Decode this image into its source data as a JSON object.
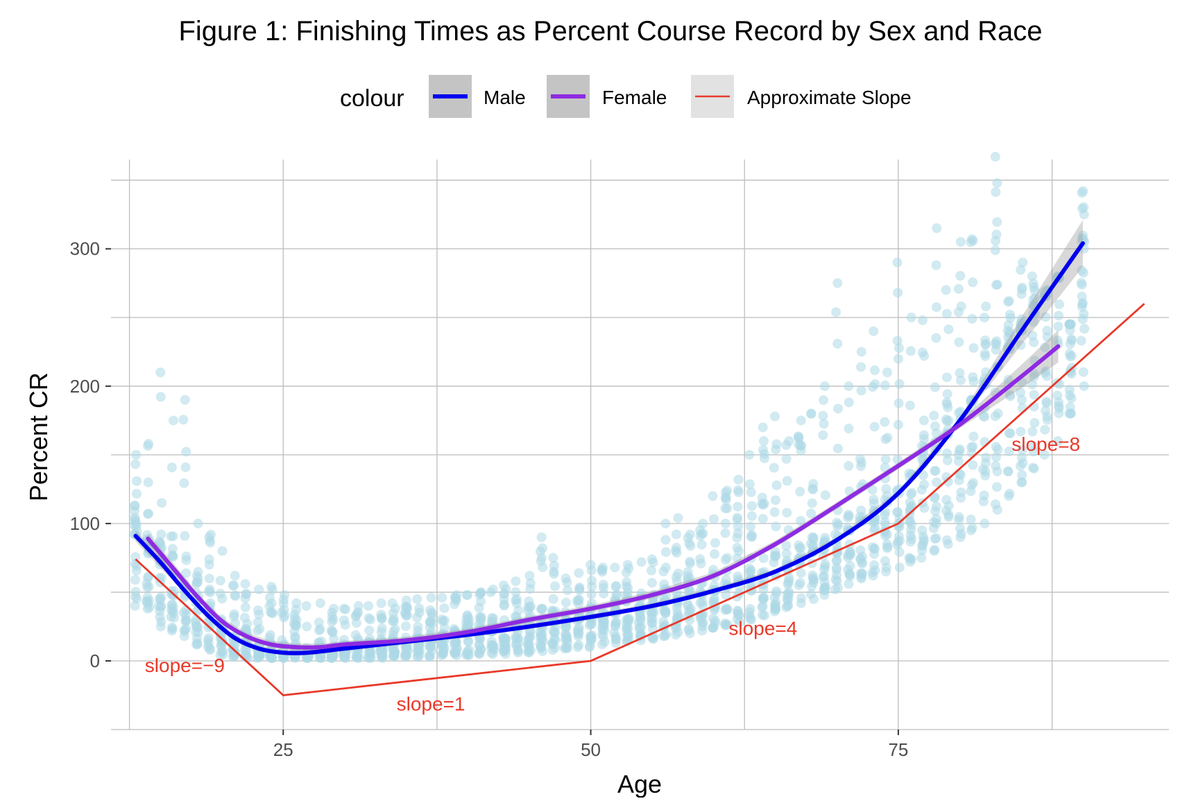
{
  "chart_data": {
    "type": "scatter",
    "title": "Figure 1: Finishing Times as Percent Course Record by Sex and Race",
    "xlabel": "Age",
    "ylabel": "Percent CR",
    "xlim": [
      11,
      97
    ],
    "ylim": [
      -50,
      365
    ],
    "x_ticks": [
      25,
      50,
      75
    ],
    "y_ticks": [
      0,
      100,
      200,
      300
    ],
    "legend": {
      "title": "colour",
      "position": "top",
      "items": [
        {
          "label": "Male",
          "color": "#0000ee"
        },
        {
          "label": "Female",
          "color": "#8e2be2"
        },
        {
          "label": "Approximate Slope",
          "color": "#e8392a"
        }
      ]
    },
    "colors": {
      "points": "#add8e6",
      "male": "#0000ee",
      "female": "#8e2be2",
      "slope": "#e8392a",
      "grid": "#bdbdbd",
      "ribbon": "#9e9e9e"
    },
    "series": [
      {
        "name": "Male",
        "x": [
          13,
          15,
          17,
          19,
          21,
          23,
          25,
          27,
          30,
          35,
          40,
          45,
          50,
          55,
          60,
          65,
          70,
          75,
          80,
          85,
          90
        ],
        "y": [
          91,
          72,
          51,
          32,
          17,
          9,
          6,
          6,
          9,
          14,
          19,
          25,
          32,
          40,
          51,
          65,
          88,
          122,
          175,
          240,
          304
        ]
      },
      {
        "name": "Female",
        "x": [
          14,
          16,
          18,
          20,
          22,
          24,
          26,
          28,
          30,
          35,
          40,
          45,
          50,
          55,
          60,
          65,
          70,
          75,
          80,
          85,
          88
        ],
        "y": [
          89,
          68,
          47,
          29,
          18,
          12,
          10,
          10,
          12,
          15,
          21,
          30,
          38,
          48,
          62,
          85,
          113,
          142,
          172,
          207,
          229
        ]
      },
      {
        "name": "Approximate Slope",
        "x": [
          13,
          25,
          50,
          75,
          95
        ],
        "y": [
          74,
          -25,
          0,
          100,
          260
        ]
      }
    ],
    "annotations": [
      {
        "text": "slope=−9",
        "x": 17,
        "y": -3
      },
      {
        "text": "slope=1",
        "x": 37,
        "y": -31
      },
      {
        "text": "slope=4",
        "x": 64,
        "y": 24
      },
      {
        "text": "slope=8",
        "x": 87,
        "y": 158
      }
    ],
    "scatter_summary": {
      "ages": [
        13,
        14,
        15,
        16,
        17,
        18,
        19,
        20,
        21,
        22,
        23,
        24,
        25,
        26,
        27,
        28,
        29,
        30,
        31,
        32,
        33,
        34,
        35,
        36,
        37,
        38,
        39,
        40,
        41,
        42,
        43,
        44,
        45,
        46,
        47,
        48,
        49,
        50,
        51,
        52,
        53,
        54,
        55,
        56,
        57,
        58,
        59,
        60,
        61,
        62,
        63,
        64,
        65,
        66,
        67,
        68,
        69,
        70,
        71,
        72,
        73,
        74,
        75,
        76,
        77,
        78,
        79,
        80,
        81,
        82,
        83,
        84,
        85,
        86,
        87,
        88,
        89,
        90
      ],
      "min": [
        40,
        38,
        25,
        22,
        18,
        12,
        8,
        4,
        3,
        2,
        2,
        2,
        2,
        2,
        2,
        2,
        2,
        2,
        2,
        2,
        2,
        3,
        3,
        3,
        3,
        4,
        4,
        4,
        5,
        5,
        5,
        6,
        6,
        7,
        8,
        9,
        10,
        10,
        12,
        13,
        14,
        15,
        16,
        18,
        19,
        20,
        22,
        24,
        26,
        28,
        30,
        33,
        36,
        39,
        42,
        45,
        48,
        52,
        56,
        60,
        62,
        65,
        68,
        72,
        75,
        80,
        85,
        90,
        95,
        100,
        110,
        120,
        130,
        140,
        150,
        160,
        180,
        200
      ],
      "max": [
        150,
        158,
        210,
        175,
        190,
        100,
        92,
        80,
        62,
        56,
        52,
        54,
        48,
        42,
        40,
        42,
        38,
        38,
        40,
        40,
        42,
        42,
        44,
        45,
        46,
        46,
        48,
        48,
        50,
        52,
        55,
        58,
        62,
        90,
        75,
        60,
        64,
        70,
        68,
        68,
        70,
        72,
        74,
        100,
        104,
        92,
        100,
        120,
        124,
        132,
        150,
        170,
        178,
        160,
        175,
        180,
        200,
        275,
        200,
        225,
        240,
        210,
        290,
        250,
        248,
        315,
        270,
        305,
        307,
        258,
        367,
        262,
        290,
        280,
        270,
        280,
        245,
        342
      ]
    }
  }
}
